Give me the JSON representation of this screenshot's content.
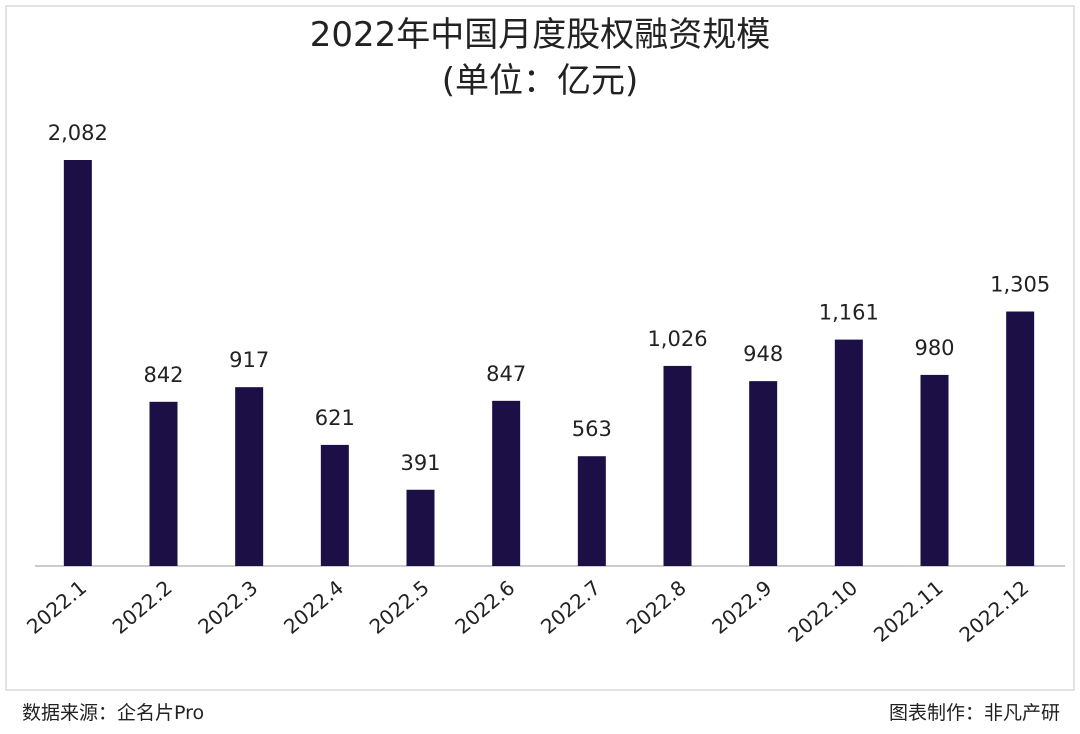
{
  "chart_data": {
    "type": "bar",
    "title": "2022年中国月度股权融资规模",
    "subtitle": "(单位：亿元)",
    "categories": [
      "2022.1",
      "2022.2",
      "2022.3",
      "2022.4",
      "2022.5",
      "2022.6",
      "2022.7",
      "2022.8",
      "2022.9",
      "2022.10",
      "2022.11",
      "2022.12"
    ],
    "values": [
      2082,
      842,
      917,
      621,
      391,
      847,
      563,
      1026,
      948,
      1161,
      980,
      1305
    ],
    "value_labels": [
      "2,082",
      "842",
      "917",
      "621",
      "391",
      "847",
      "563",
      "1,026",
      "948",
      "1,161",
      "980",
      "1,305"
    ],
    "color": "#1c0f45",
    "ylim": [
      0,
      2200
    ],
    "source": "数据来源：企名片Pro",
    "credit": "图表制作：非凡产研"
  }
}
